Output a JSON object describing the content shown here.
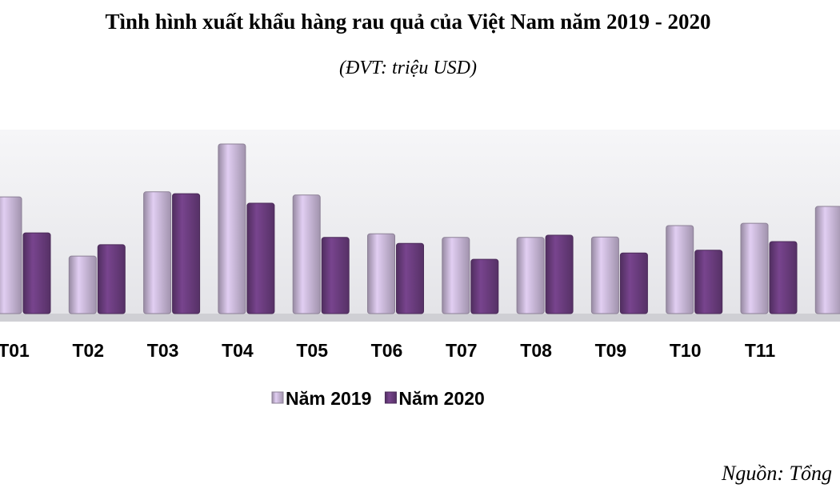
{
  "chart_data": {
    "type": "bar",
    "title": "Tình hình xuất khẩu hàng rau quả của Việt Nam năm 2019 - 2020",
    "subtitle": "(ĐVT: triệu USD)",
    "source": "Nguồn: Tổng",
    "categories": [
      "T01",
      "T02",
      "T03",
      "T04",
      "T05",
      "T06",
      "T07",
      "T08",
      "T09",
      "T10",
      "T11",
      null
    ],
    "series": [
      {
        "name": "Năm 2019",
        "color": "#c9b8d8",
        "values": [
          256,
          126,
          267,
          372,
          260,
          175,
          167,
          167,
          168,
          193,
          198,
          235
        ]
      },
      {
        "name": "Năm 2020",
        "color": "#6b3d7f",
        "values": [
          177,
          151,
          263,
          242,
          167,
          154,
          119,
          172,
          133,
          139,
          158,
          null
        ]
      }
    ],
    "ylim": [
      0,
      400
    ]
  }
}
